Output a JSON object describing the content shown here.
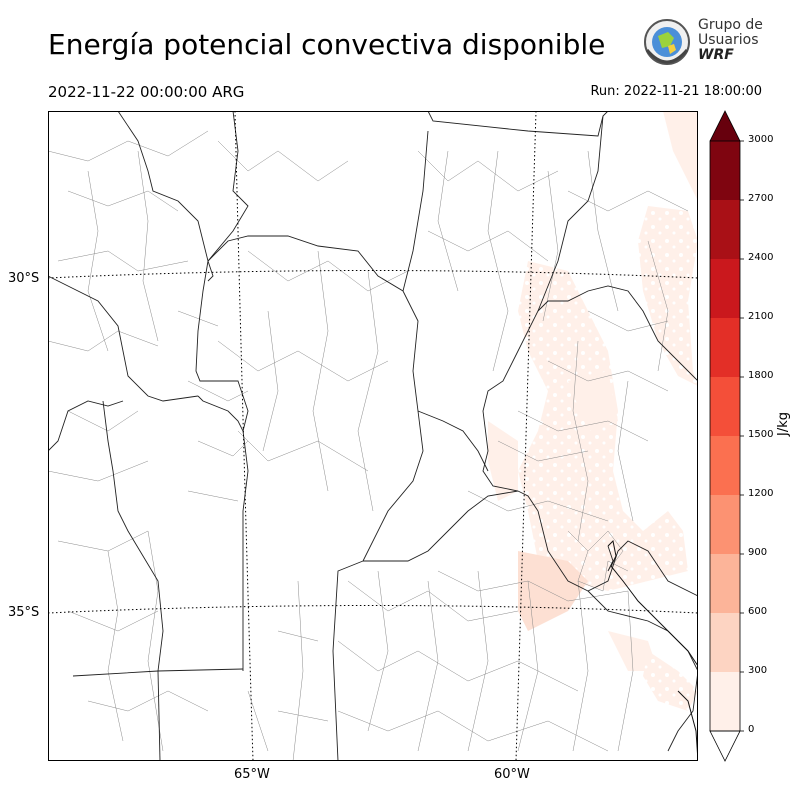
{
  "header": {
    "title": "Energía potencial convectiva disponible",
    "valid_time": "2022-11-22 00:00:00 ARG",
    "run_time": "Run: 2022-11-21 18:00:00"
  },
  "logo": {
    "line1": "Grupo de",
    "line2": "Usuarios",
    "line3": "WRF"
  },
  "map": {
    "lat_labels": [
      "30°S",
      "35°S"
    ],
    "lon_labels": [
      "65°W",
      "60°W"
    ]
  },
  "colorbar": {
    "label": "J/kg",
    "ticks": [
      "0",
      "300",
      "600",
      "900",
      "1200",
      "1500",
      "1800",
      "2100",
      "2400",
      "2700",
      "3000"
    ],
    "colors": [
      "#fff0e9",
      "#fdd4c2",
      "#fcb499",
      "#fc9272",
      "#fb7050",
      "#f44f39",
      "#e32f27",
      "#ca181d",
      "#a91016",
      "#7f0510"
    ],
    "over_color": "#67000d",
    "under_color": "#ffffff"
  }
}
